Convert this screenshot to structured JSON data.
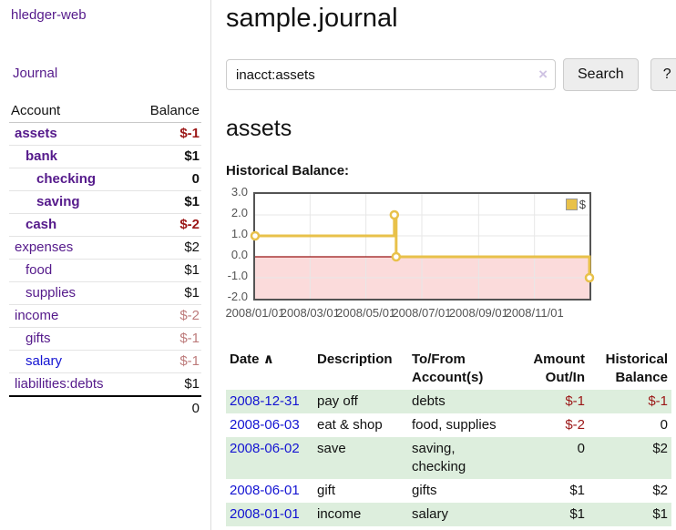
{
  "colors": {
    "link_purple": "#551a8b",
    "link_blue": "#1414d2",
    "negative_strong": "#9b1616",
    "negative_soft": "#bd7b7b",
    "row_green": "#ddeedd",
    "chart_line": "#e8c14a",
    "chart_negative_fill": "#fbdbdb",
    "chart_zero_line": "#991414",
    "chart_grid": "#e7e7e7",
    "chart_border": "#545454"
  },
  "sidebar": {
    "app_title": "hledger-web",
    "journal_link": "Journal",
    "accounts_table": {
      "account_header": "Account",
      "balance_header": "Balance",
      "rows": [
        {
          "name": "assets",
          "level": 1,
          "balance": "$-1",
          "bold": true,
          "blue": false
        },
        {
          "name": "bank",
          "level": 2,
          "balance": "$1",
          "bold": true,
          "blue": false
        },
        {
          "name": "checking",
          "level": 3,
          "balance": "0",
          "bold": true,
          "blue": false
        },
        {
          "name": "saving",
          "level": 3,
          "balance": "$1",
          "bold": true,
          "blue": false
        },
        {
          "name": "cash",
          "level": 2,
          "balance": "$-2",
          "bold": true,
          "blue": false
        },
        {
          "name": "expenses",
          "level": 1,
          "balance": "$2",
          "bold": false,
          "blue": false
        },
        {
          "name": "food",
          "level": 2,
          "balance": "$1",
          "bold": false,
          "blue": false
        },
        {
          "name": "supplies",
          "level": 2,
          "balance": "$1",
          "bold": false,
          "blue": false
        },
        {
          "name": "income",
          "level": 1,
          "balance": "$-2",
          "bold": false,
          "blue": false
        },
        {
          "name": "gifts",
          "level": 2,
          "balance": "$-1",
          "bold": false,
          "blue": false
        },
        {
          "name": "salary",
          "level": 2,
          "balance": "$-1",
          "bold": false,
          "blue": true
        },
        {
          "name": "liabilities:debts",
          "level": 1,
          "balance": "$1",
          "bold": false,
          "blue": false
        }
      ],
      "total": "0"
    }
  },
  "main": {
    "title": "sample.journal",
    "search": {
      "value": "inacct:assets",
      "clear_icon": "×",
      "search_button": "Search",
      "help_button": "?"
    },
    "account_heading": "assets",
    "chart_label": "Historical Balance:"
  },
  "chart_data": {
    "type": "line",
    "step": true,
    "title": "Historical Balance",
    "series": [
      {
        "name": "$",
        "points": [
          [
            "2008-01-01",
            1.0
          ],
          [
            "2008-06-01",
            2.0
          ],
          [
            "2008-06-03",
            0.0
          ],
          [
            "2008-12-31",
            -1.0
          ]
        ]
      }
    ],
    "x_range": [
      "2008-01-01",
      "2008-12-31"
    ],
    "ylim": [
      -2.0,
      3.0
    ],
    "y_ticks": [
      3.0,
      2.0,
      1.0,
      0.0,
      -1.0,
      -2.0
    ],
    "x_ticks": [
      {
        "date": "2008-01-01",
        "label": "2008/01/01"
      },
      {
        "date": "2008-03-01",
        "label": "2008/03/01"
      },
      {
        "date": "2008-05-01",
        "label": "2008/05/01"
      },
      {
        "date": "2008-07-01",
        "label": "2008/07/01"
      },
      {
        "date": "2008-09-01",
        "label": "2008/09/01"
      },
      {
        "date": "2008-11-01",
        "label": "2008/11/01"
      }
    ],
    "legend": {
      "label": "$",
      "position": "top-right"
    },
    "grid": true,
    "negative_region_shaded": true,
    "zero_line": true
  },
  "register_table": {
    "headers": {
      "date": "Date",
      "sort_indicator": "∧",
      "description": "Description",
      "accounts": "To/From Account(s)",
      "amount": "Amount Out/In",
      "balance": "Historical Balance"
    },
    "rows": [
      {
        "date": "2008-12-31",
        "description": "pay off",
        "accounts": "debts",
        "amount": "$-1",
        "balance": "$-1"
      },
      {
        "date": "2008-06-03",
        "description": "eat & shop",
        "accounts": "food, supplies",
        "amount": "$-2",
        "balance": "0"
      },
      {
        "date": "2008-06-02",
        "description": "save",
        "accounts": "saving, checking",
        "amount": "0",
        "balance": "$2"
      },
      {
        "date": "2008-06-01",
        "description": "gift",
        "accounts": "gifts",
        "amount": "$1",
        "balance": "$2"
      },
      {
        "date": "2008-01-01",
        "description": "income",
        "accounts": "salary",
        "amount": "$1",
        "balance": "$1"
      }
    ]
  }
}
